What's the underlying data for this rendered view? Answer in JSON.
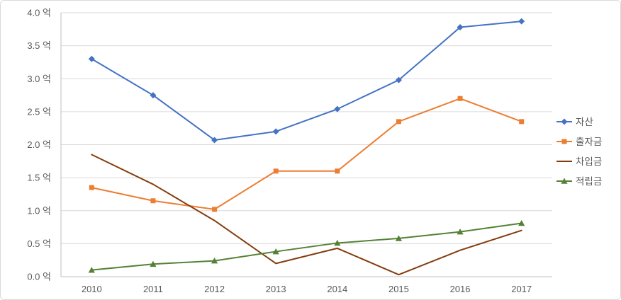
{
  "chart_data": {
    "type": "line",
    "title": "",
    "xlabel": "",
    "ylabel": "",
    "categories": [
      "2010",
      "2011",
      "2012",
      "2013",
      "2014",
      "2015",
      "2016",
      "2017"
    ],
    "series": [
      {
        "key": "assets",
        "name": "자산",
        "color": "#4472C4",
        "marker": "diamond",
        "values": [
          3.3,
          2.75,
          2.07,
          2.2,
          2.54,
          2.98,
          3.78,
          3.87
        ]
      },
      {
        "key": "paid-in-capital",
        "name": "출자금",
        "color": "#ED7D31",
        "marker": "square",
        "values": [
          1.35,
          1.15,
          1.02,
          1.6,
          1.6,
          2.35,
          2.7,
          2.35
        ]
      },
      {
        "key": "borrowings",
        "name": "차입금",
        "color": "#843C0C",
        "marker": "none",
        "values": [
          1.85,
          1.4,
          0.85,
          0.2,
          0.43,
          0.03,
          0.4,
          0.7
        ]
      },
      {
        "key": "reserves",
        "name": "적립금",
        "color": "#548235",
        "marker": "triangle",
        "values": [
          0.1,
          0.19,
          0.24,
          0.38,
          0.51,
          0.58,
          0.68,
          0.81
        ]
      }
    ],
    "ylim": [
      0,
      4
    ],
    "ytick_step": 0.5,
    "ytick_labels": [
      "0.0 억",
      "0.5 억",
      "1.0 억",
      "1.5 억",
      "2.0 억",
      "2.5 억",
      "3.0 억",
      "3.5 억",
      "4.0 억"
    ],
    "grid": true,
    "legend_position": "right"
  },
  "colors": {
    "grid": "#D9D9D9",
    "axis": "#BFBFBF",
    "tick_text": "#595959",
    "legend_text": "#595959",
    "border": "#D9D9D9",
    "background": "#FFFFFF"
  }
}
